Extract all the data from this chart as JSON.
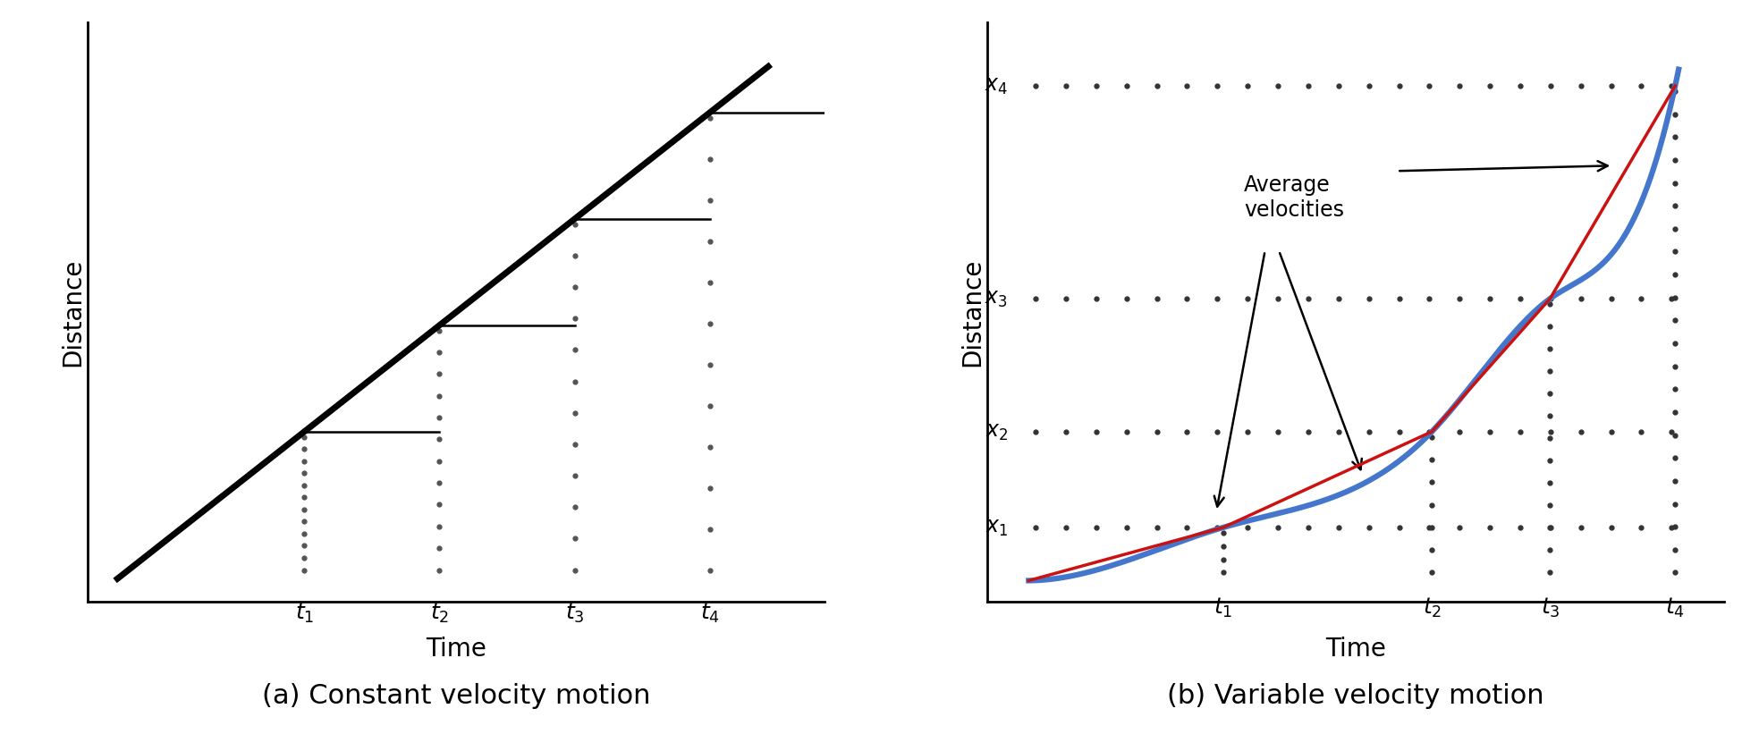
{
  "panel_a": {
    "title": "(a) Constant velocity motion",
    "xlabel": "Time",
    "ylabel": "Distance",
    "t_values": [
      0.28,
      0.48,
      0.68,
      0.88
    ],
    "t_labels": [
      "$t_1$",
      "$t_2$",
      "$t_3$",
      "$t_4$"
    ]
  },
  "panel_b": {
    "title": "(b) Variable velocity motion",
    "xlabel": "Time",
    "ylabel": "Distance",
    "t_values": [
      0.28,
      0.58,
      0.75,
      0.93
    ],
    "x_values": [
      0.1,
      0.28,
      0.53,
      0.93
    ],
    "x_labels": [
      "$x_1$",
      "$x_2$",
      "$x_3$",
      "$x_4$"
    ],
    "t_labels": [
      "$t_1$",
      "$t_2$",
      "$t_3$",
      "$t_4$"
    ],
    "annotation_text": "Average\nvelocities",
    "curve_color_blue": "#4477cc",
    "curve_color_red": "#cc1111"
  },
  "background_color": "#ffffff",
  "title_fontsize": 20,
  "label_fontsize": 17,
  "tick_fontsize": 16,
  "annotation_fontsize": 15
}
